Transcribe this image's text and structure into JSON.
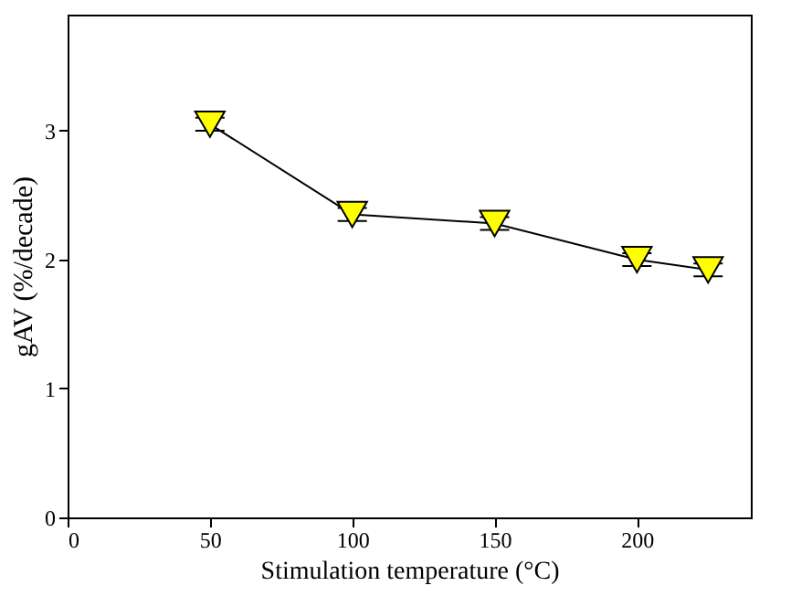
{
  "chart_data": {
    "type": "line",
    "xlabel": "Stimulation temperature (°C)",
    "ylabel": "gAV (%/decade)",
    "x": [
      50,
      100,
      150,
      200,
      225
    ],
    "series": [
      {
        "color": "#ffff00",
        "values": [
          3.05,
          2.35,
          2.28,
          2.0,
          1.92
        ],
        "errors": [
          0.05,
          0.05,
          0.05,
          0.05,
          0.05
        ]
      }
    ],
    "xlim": [
      0,
      240
    ],
    "xticks": [
      0,
      50,
      100,
      150,
      200
    ],
    "ylim": [
      0,
      3.9
    ],
    "yticks": [
      0,
      1,
      2,
      3
    ],
    "marker": "triangle",
    "line_style": "solid",
    "grid": false
  }
}
